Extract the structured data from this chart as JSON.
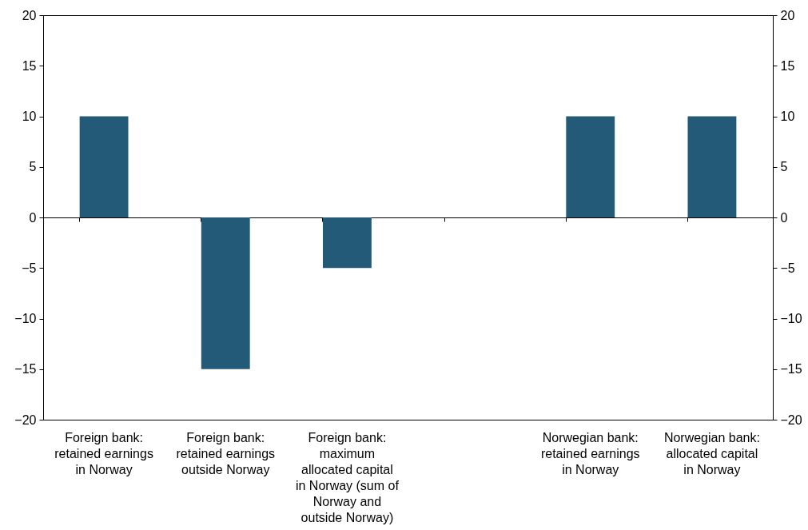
{
  "chart_data": {
    "type": "bar",
    "categories": [
      "Foreign bank:\nretained earnings\nin Norway",
      "Foreign bank:\nretained earnings\noutside Norway",
      "Foreign bank:\nmaximum\nallocated capital\nin Norway (sum of\nNorway and\noutside Norway)",
      null,
      "Norwegian bank:\nretained earnings\nin Norway",
      "Norwegian bank:\nallocated capital\nin Norway"
    ],
    "values": [
      10,
      -15,
      -5,
      null,
      10,
      10
    ],
    "color": "#235a78",
    "ylim": [
      -20,
      20
    ],
    "yticks": [
      -20,
      -15,
      -10,
      -5,
      0,
      5,
      10,
      15,
      20
    ],
    "y2lim": [
      -20,
      20
    ],
    "y2ticks": [
      -20,
      -15,
      -10,
      -5,
      0,
      5,
      10,
      15,
      20
    ]
  }
}
